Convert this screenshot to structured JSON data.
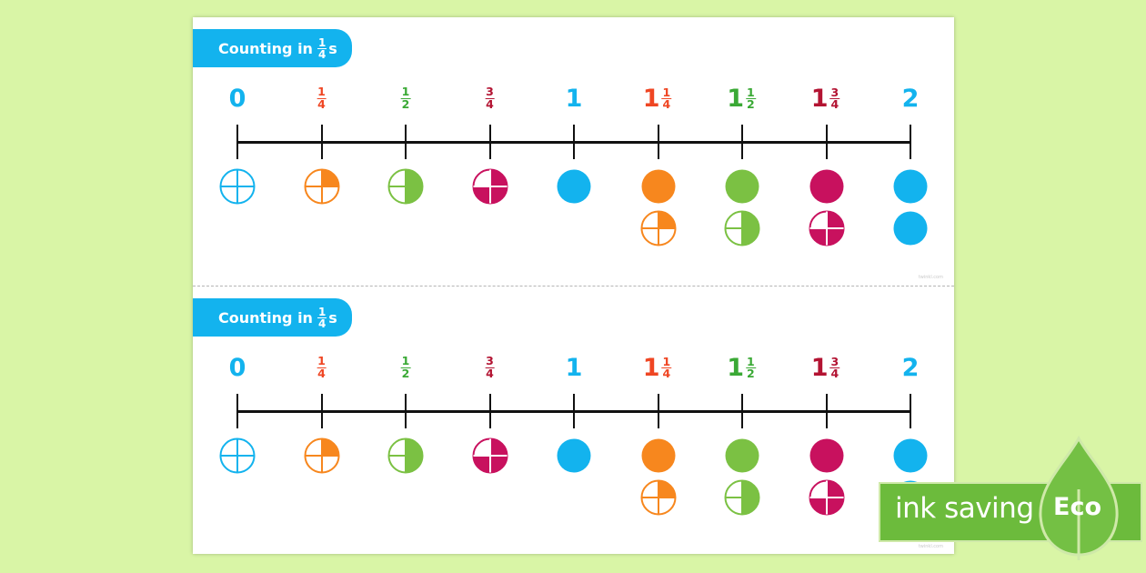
{
  "colors": {
    "background": "#d9f5a6",
    "blue": "#13b3ee",
    "orange": "#f7871e",
    "green": "#7bc143",
    "red": "#c8115e",
    "label_orange": "#ef4623",
    "label_green": "#3aa935",
    "label_red": "#b31332",
    "eco_green": "#6cbb3c"
  },
  "strips": [
    {
      "title": {
        "prefix": "Counting in",
        "numerator": "1",
        "denominator": "4",
        "suffix": "s"
      },
      "credit": "twinkl.com"
    },
    {
      "title": {
        "prefix": "Counting in",
        "numerator": "1",
        "denominator": "4",
        "suffix": "s"
      },
      "credit": "twinkl.com"
    }
  ],
  "number_line": {
    "labels": [
      {
        "whole": "0",
        "num": "",
        "den": "",
        "color": "#13b3ee"
      },
      {
        "whole": "",
        "num": "1",
        "den": "4",
        "color": "#ef4623"
      },
      {
        "whole": "",
        "num": "1",
        "den": "2",
        "color": "#3aa935"
      },
      {
        "whole": "",
        "num": "3",
        "den": "4",
        "color": "#b31332"
      },
      {
        "whole": "1",
        "num": "",
        "den": "",
        "color": "#13b3ee"
      },
      {
        "whole": "1",
        "num": "1",
        "den": "4",
        "color": "#ef4623"
      },
      {
        "whole": "1",
        "num": "1",
        "den": "2",
        "color": "#3aa935"
      },
      {
        "whole": "1",
        "num": "3",
        "den": "4",
        "color": "#b31332"
      },
      {
        "whole": "2",
        "num": "",
        "den": "",
        "color": "#13b3ee"
      }
    ],
    "circles": [
      {
        "color": "#13b3ee",
        "quarters": [
          0
        ]
      },
      {
        "color": "#f7871e",
        "quarters": [
          0.25
        ]
      },
      {
        "color": "#7bc143",
        "quarters": [
          0.5
        ]
      },
      {
        "color": "#c8115e",
        "quarters": [
          0.75
        ]
      },
      {
        "color": "#13b3ee",
        "quarters": [
          1
        ]
      },
      {
        "color": "#f7871e",
        "quarters": [
          1,
          0.25
        ]
      },
      {
        "color": "#7bc143",
        "quarters": [
          1,
          0.5
        ]
      },
      {
        "color": "#c8115e",
        "quarters": [
          1,
          0.75
        ]
      },
      {
        "color": "#13b3ee",
        "quarters": [
          1,
          1
        ]
      }
    ]
  },
  "eco_badge": {
    "text": "ink saving",
    "badge": "Eco"
  }
}
